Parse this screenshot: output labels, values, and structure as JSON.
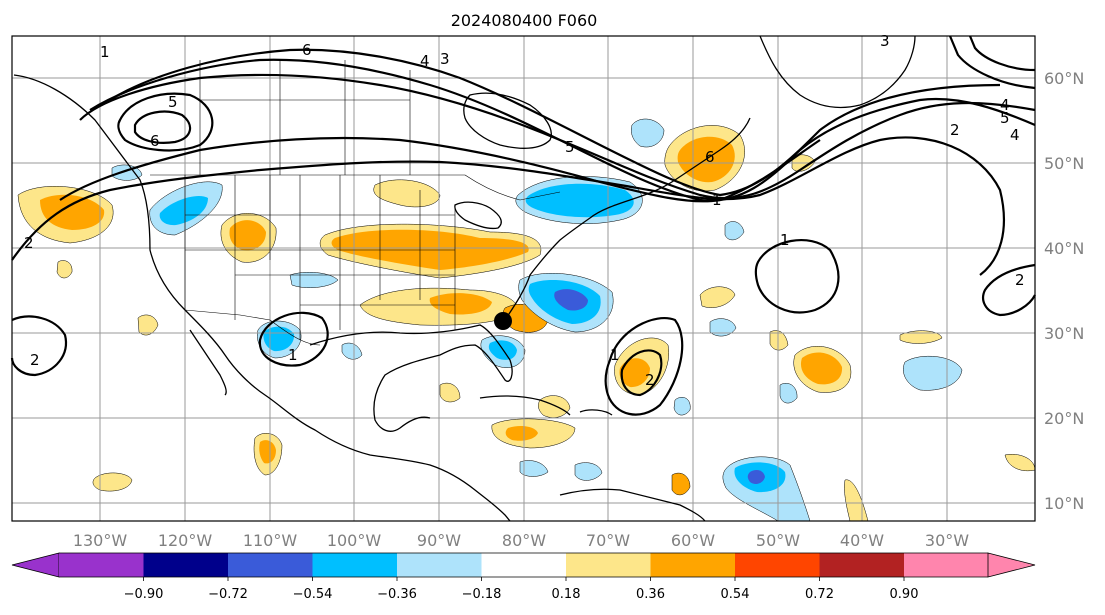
{
  "title": "2024080400 F060",
  "map": {
    "lon_labels": [
      "130°W",
      "120°W",
      "110°W",
      "100°W",
      "90°W",
      "80°W",
      "70°W",
      "60°W",
      "50°W",
      "40°W",
      "30°W"
    ],
    "lat_labels": [
      "60°N",
      "50°N",
      "40°N",
      "30°N",
      "20°N",
      "10°N"
    ],
    "marker": "storm-center-dot"
  },
  "colorbar": {
    "ticks": [
      "−0.90",
      "−0.72",
      "−0.54",
      "−0.36",
      "−0.18",
      "0.18",
      "0.36",
      "0.54",
      "0.72",
      "0.90"
    ],
    "colors": [
      "#9932cc",
      "#00008b",
      "#3a5bd9",
      "#00bfff",
      "#aee3fb",
      "#ffffff",
      "#fde68a",
      "#ffa500",
      "#ff4500",
      "#b22222",
      "#ff85ad"
    ]
  },
  "contours": {
    "labels": [
      "1",
      "2",
      "3",
      "4",
      "5",
      "6",
      "1",
      "2",
      "3",
      "4",
      "5",
      "6",
      "1",
      "2",
      "1",
      "1",
      "2",
      "4",
      "5",
      "6",
      "2"
    ]
  },
  "colors": {
    "positive_light": "#fde68a",
    "positive_mid": "#ffa500",
    "positive_strong": "#ff4500",
    "negative_light": "#aee3fb",
    "negative_mid": "#00bfff",
    "negative_strong": "#3a5bd9"
  }
}
